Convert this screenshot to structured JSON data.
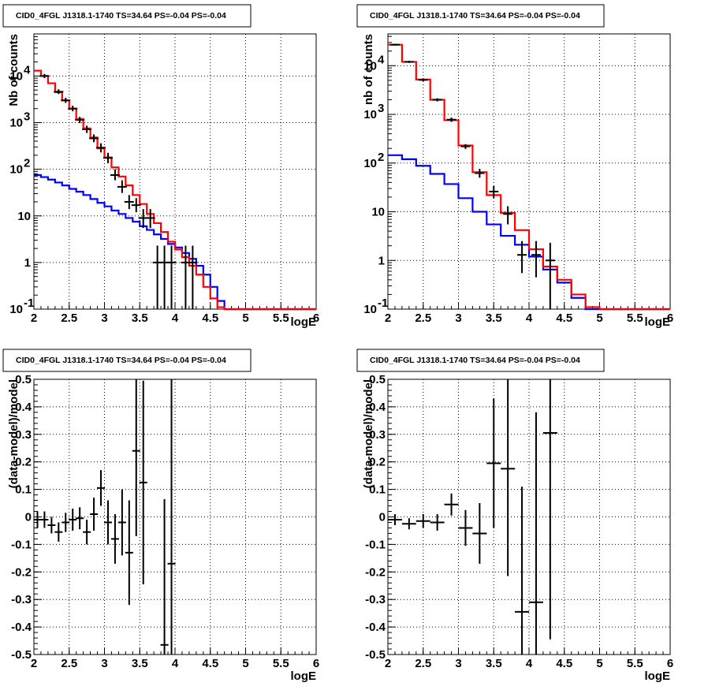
{
  "chart_data": [
    {
      "type": "line",
      "title": "CID0_4FGL J1318.1-1740 TS=34.64 PS=-0.04 PS=-0.04",
      "xlabel": "logE",
      "ylabel": "Nb of counts",
      "xlim": [
        2,
        6
      ],
      "ylim": [
        0.1,
        80000
      ],
      "yscale": "log",
      "grid": true,
      "x_ticks": [
        "2",
        "2.5",
        "3",
        "3.5",
        "4",
        "4.5",
        "5",
        "5.5",
        "6"
      ],
      "y_ticks": [
        {
          "value": 0.1,
          "label": "10",
          "exp": "-1"
        },
        {
          "value": 1,
          "label": "1",
          "exp": ""
        },
        {
          "value": 10,
          "label": "10",
          "exp": ""
        },
        {
          "value": 100,
          "label": "10",
          "exp": "2"
        },
        {
          "value": 1000,
          "label": "10",
          "exp": "3"
        },
        {
          "value": 10000,
          "label": "10",
          "exp": "4"
        }
      ],
      "bin_edges": [
        2.0,
        2.1,
        2.2,
        2.3,
        2.4,
        2.5,
        2.6,
        2.7,
        2.8,
        2.9,
        3.0,
        3.1,
        3.2,
        3.3,
        3.4,
        3.5,
        3.6,
        3.7,
        3.8,
        3.9,
        4.0,
        4.1,
        4.2,
        4.3,
        4.4,
        4.5,
        4.6,
        4.7,
        4.8,
        4.9,
        5.0,
        5.1,
        5.2,
        5.3,
        5.4,
        5.5,
        5.6,
        5.7,
        5.8,
        5.9,
        6.0
      ],
      "series": [
        {
          "color": "#ff0000",
          "values": [
            13000,
            10000,
            7000,
            4500,
            3000,
            2000,
            1200,
            750,
            480,
            280,
            180,
            110,
            70,
            45,
            28,
            18,
            11,
            7,
            4.5,
            2.8,
            1.9,
            1.3,
            0.85,
            0.55,
            0.3,
            0.17,
            0.11,
            0.1,
            0.1,
            0.1,
            0.1,
            0.1,
            0.1,
            0.1,
            0.1,
            0.1,
            0.1,
            0.1,
            0.1,
            0.1
          ]
        },
        {
          "color": "#0000ff",
          "values": [
            75,
            68,
            60,
            52,
            45,
            38,
            33,
            28,
            23,
            19,
            16,
            13,
            11,
            9,
            7.5,
            6,
            5,
            4,
            3.2,
            2.5,
            2.1,
            1.6,
            1.2,
            0.85,
            0.55,
            0.3,
            0.15,
            0.1,
            0.1,
            0.1,
            0.1,
            0.1,
            0.1,
            0.1,
            0.1,
            0.1,
            0.1,
            0.1,
            0.1,
            0.1
          ]
        }
      ],
      "data_points": [
        {
          "x": 2.15,
          "y": 10000,
          "lo": 9000,
          "hi": 11100
        },
        {
          "x": 2.35,
          "y": 4600,
          "lo": 4100,
          "hi": 5200
        },
        {
          "x": 2.45,
          "y": 3000,
          "lo": 2650,
          "hi": 3400
        },
        {
          "x": 2.55,
          "y": 2000,
          "lo": 1750,
          "hi": 2300
        },
        {
          "x": 2.65,
          "y": 1150,
          "lo": 980,
          "hi": 1330
        },
        {
          "x": 2.75,
          "y": 720,
          "lo": 600,
          "hi": 860
        },
        {
          "x": 2.85,
          "y": 460,
          "lo": 380,
          "hi": 560
        },
        {
          "x": 2.95,
          "y": 290,
          "lo": 230,
          "hi": 360
        },
        {
          "x": 3.05,
          "y": 175,
          "lo": 135,
          "hi": 225
        },
        {
          "x": 3.15,
          "y": 75,
          "lo": 58,
          "hi": 100
        },
        {
          "x": 3.25,
          "y": 42,
          "lo": 31,
          "hi": 58
        },
        {
          "x": 3.35,
          "y": 20,
          "lo": 14,
          "hi": 28
        },
        {
          "x": 3.45,
          "y": 17,
          "lo": 12,
          "hi": 24
        },
        {
          "x": 3.55,
          "y": 9,
          "lo": 5.5,
          "hi": 14
        },
        {
          "x": 3.65,
          "y": 9,
          "lo": 5.5,
          "hi": 14
        },
        {
          "x": 3.75,
          "y": 1,
          "lo": 0.1,
          "hi": 2.3
        },
        {
          "x": 3.85,
          "y": 1,
          "lo": 0.1,
          "hi": 2.3
        },
        {
          "x": 3.95,
          "y": 1,
          "lo": 0.1,
          "hi": 2.3
        },
        {
          "x": 4.15,
          "y": 1,
          "lo": 0.1,
          "hi": 2.3
        },
        {
          "x": 4.25,
          "y": 1,
          "lo": 0.1,
          "hi": 2.3
        }
      ]
    },
    {
      "type": "line",
      "title": "CID0_4FGL J1318.1-1740 TS=34.64 PS=-0.04 PS=-0.04",
      "xlabel": "logE",
      "ylabel": "nb of counts",
      "xlim": [
        2,
        6
      ],
      "ylim": [
        0.1,
        45000
      ],
      "yscale": "log",
      "grid": true,
      "x_ticks": [
        "2",
        "2.5",
        "3",
        "3.5",
        "4",
        "4.5",
        "5",
        "5.5",
        "6"
      ],
      "y_ticks": [
        {
          "value": 0.1,
          "label": "10",
          "exp": "-1"
        },
        {
          "value": 1,
          "label": "1",
          "exp": ""
        },
        {
          "value": 10,
          "label": "10",
          "exp": ""
        },
        {
          "value": 100,
          "label": "10",
          "exp": "2"
        },
        {
          "value": 1000,
          "label": "10",
          "exp": "3"
        },
        {
          "value": 10000,
          "label": "10",
          "exp": "4"
        }
      ],
      "bin_edges": [
        2.0,
        2.2,
        2.4,
        2.6,
        2.8,
        3.0,
        3.2,
        3.4,
        3.6,
        3.8,
        4.0,
        4.2,
        4.4,
        4.6,
        4.8,
        5.0,
        5.2,
        5.4,
        5.6,
        5.8,
        6.0
      ],
      "series": [
        {
          "color": "#ff0000",
          "values": [
            27000,
            12000,
            5200,
            2000,
            760,
            230,
            65,
            22,
            9.5,
            4.2,
            1.7,
            0.75,
            0.4,
            0.2,
            0.11,
            0.1,
            0.1,
            0.1,
            0.1,
            0.1
          ]
        },
        {
          "color": "#0000ff",
          "values": [
            145,
            120,
            88,
            60,
            37,
            19,
            10,
            5.5,
            3.2,
            2.1,
            1.2,
            0.65,
            0.35,
            0.17,
            0.1,
            0.1,
            0.1,
            0.1,
            0.1,
            0.1
          ]
        }
      ],
      "data_points": [
        {
          "x": 2.1,
          "y": 27000,
          "lo": 26000,
          "hi": 28000
        },
        {
          "x": 2.3,
          "y": 12000,
          "lo": 11400,
          "hi": 12600
        },
        {
          "x": 2.5,
          "y": 5100,
          "lo": 4800,
          "hi": 5400
        },
        {
          "x": 2.7,
          "y": 2000,
          "lo": 1850,
          "hi": 2150
        },
        {
          "x": 2.9,
          "y": 780,
          "lo": 700,
          "hi": 860
        },
        {
          "x": 3.1,
          "y": 220,
          "lo": 195,
          "hi": 245
        },
        {
          "x": 3.3,
          "y": 62,
          "lo": 50,
          "hi": 76
        },
        {
          "x": 3.5,
          "y": 26,
          "lo": 19,
          "hi": 34
        },
        {
          "x": 3.7,
          "y": 9,
          "lo": 5.5,
          "hi": 13
        },
        {
          "x": 3.9,
          "y": 1.3,
          "lo": 0.55,
          "hi": 2.5
        },
        {
          "x": 4.1,
          "y": 1.3,
          "lo": 0.45,
          "hi": 2.5
        },
        {
          "x": 4.3,
          "y": 1,
          "lo": 0.1,
          "hi": 2.3
        }
      ]
    },
    {
      "type": "scatter",
      "title": "CID0_4FGL J1318.1-1740 TS=34.64 PS=-0.04 PS=-0.04",
      "xlabel": "logE",
      "ylabel": "(data-model)/model",
      "xlim": [
        2,
        6
      ],
      "ylim": [
        -0.5,
        0.5
      ],
      "grid": true,
      "x_ticks": [
        "2",
        "2.5",
        "3",
        "3.5",
        "4",
        "4.5",
        "5",
        "5.5",
        "6"
      ],
      "y_ticks": [
        "-0.5",
        "-0.4",
        "-0.3",
        "-0.2",
        "-0.1",
        "0",
        "0.1",
        "0.2",
        "0.3",
        "0.4",
        "0.5"
      ],
      "points": [
        {
          "x": 2.05,
          "y": -0.01,
          "err": 0.03
        },
        {
          "x": 2.15,
          "y": -0.01,
          "err": 0.03
        },
        {
          "x": 2.25,
          "y": -0.03,
          "err": 0.03
        },
        {
          "x": 2.35,
          "y": -0.055,
          "err": 0.035
        },
        {
          "x": 2.45,
          "y": -0.02,
          "err": 0.035
        },
        {
          "x": 2.55,
          "y": -0.01,
          "err": 0.04
        },
        {
          "x": 2.65,
          "y": -0.005,
          "err": 0.04
        },
        {
          "x": 2.75,
          "y": -0.055,
          "err": 0.045
        },
        {
          "x": 2.85,
          "y": 0.01,
          "err": 0.06
        },
        {
          "x": 2.95,
          "y": 0.105,
          "err": 0.065
        },
        {
          "x": 3.05,
          "y": -0.02,
          "err": 0.08
        },
        {
          "x": 3.15,
          "y": -0.08,
          "err": 0.09
        },
        {
          "x": 3.25,
          "y": -0.02,
          "err": 0.12
        },
        {
          "x": 3.35,
          "y": -0.13,
          "err": 0.19
        },
        {
          "x": 3.45,
          "y": 0.24,
          "err": 0.31
        },
        {
          "x": 3.55,
          "y": 0.125,
          "err": 0.37
        },
        {
          "x": 3.85,
          "y": -0.465,
          "err": 0.53
        },
        {
          "x": 3.95,
          "y": -0.17,
          "err": 0.75
        }
      ]
    },
    {
      "type": "scatter",
      "title": "CID0_4FGL J1318.1-1740 TS=34.64 PS=-0.04 PS=-0.04",
      "xlabel": "logE",
      "ylabel": "(data-model)/model",
      "xlim": [
        2,
        6
      ],
      "ylim": [
        -0.5,
        0.5
      ],
      "grid": true,
      "x_ticks": [
        "2",
        "2.5",
        "3",
        "3.5",
        "4",
        "4.5",
        "5",
        "5.5",
        "6"
      ],
      "y_ticks": [
        "-0.5",
        "-0.4",
        "-0.3",
        "-0.2",
        "-0.1",
        "0",
        "0.1",
        "0.2",
        "0.3",
        "0.4",
        "0.5"
      ],
      "points": [
        {
          "x": 2.1,
          "y": -0.01,
          "err": 0.02
        },
        {
          "x": 2.3,
          "y": -0.025,
          "err": 0.02
        },
        {
          "x": 2.5,
          "y": -0.015,
          "err": 0.025
        },
        {
          "x": 2.7,
          "y": -0.02,
          "err": 0.03
        },
        {
          "x": 2.9,
          "y": 0.045,
          "err": 0.04
        },
        {
          "x": 3.1,
          "y": -0.04,
          "err": 0.065
        },
        {
          "x": 3.3,
          "y": -0.06,
          "err": 0.11
        },
        {
          "x": 3.5,
          "y": 0.195,
          "err": 0.235
        },
        {
          "x": 3.7,
          "y": 0.175,
          "err": 0.39
        },
        {
          "x": 3.9,
          "y": -0.345,
          "err": 0.455
        },
        {
          "x": 4.1,
          "y": -0.31,
          "err": 0.69
        },
        {
          "x": 4.3,
          "y": 0.305,
          "err": 0.75
        }
      ]
    }
  ]
}
